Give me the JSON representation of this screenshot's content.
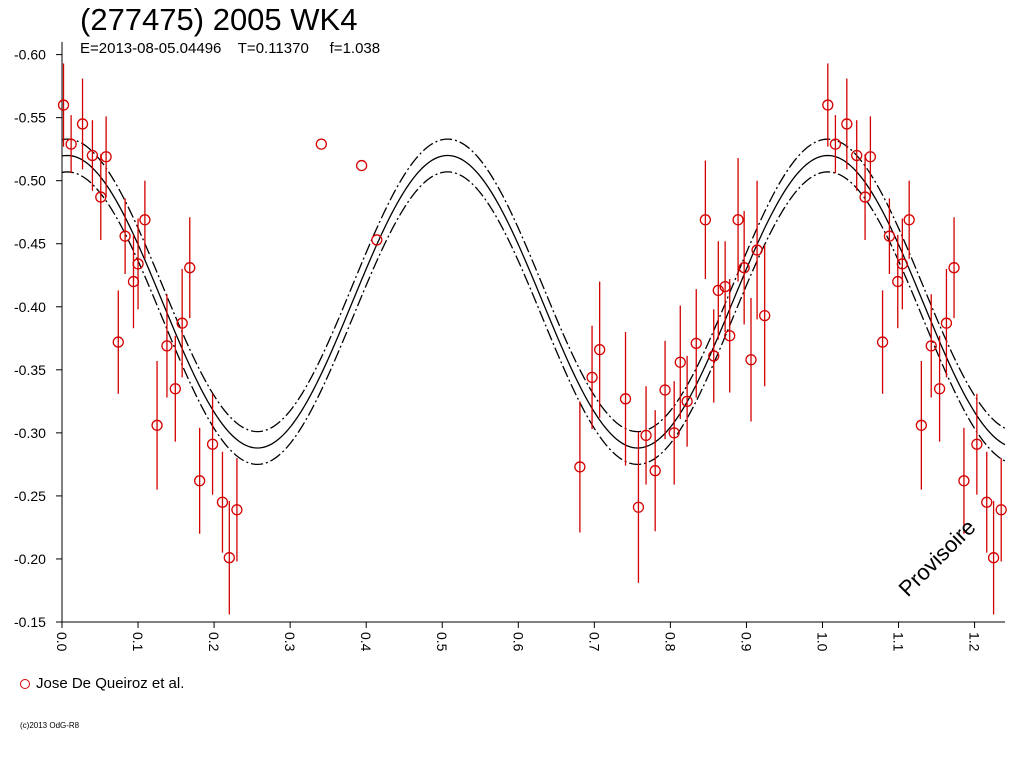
{
  "header": {
    "title": "(277475) 2005 WK4",
    "subtitle": "E=2013-08-05.04496    T=0.11370     f=1.038"
  },
  "legend": {
    "label": "Jose De Queiroz et al."
  },
  "copyright": "(c)2013 OdG-R8",
  "watermark": "Provisoire",
  "colors": {
    "points": "#d40000",
    "curves": "#000000",
    "axes": "#000000"
  },
  "chart_data": {
    "type": "scatter",
    "title": "(277475) 2005 WK4",
    "xlim": [
      0.0,
      1.24
    ],
    "ylim": [
      -0.61,
      -0.15
    ],
    "y_inverted": true,
    "x_ticks": [
      "0.0",
      "0.1",
      "0.2",
      "0.3",
      "0.4",
      "0.5",
      "0.6",
      "0.7",
      "0.8",
      "0.9",
      "1.0",
      "1.1",
      "1.2"
    ],
    "y_ticks": [
      "-0.60",
      "-0.55",
      "-0.50",
      "-0.45",
      "-0.40",
      "-0.35",
      "-0.30",
      "-0.25",
      "-0.20",
      "-0.15"
    ],
    "fit": {
      "period_phase": 0.5,
      "mean": -0.404,
      "amplitude": 0.116,
      "peak_phase": 0.007,
      "band": 0.013
    },
    "series": [
      {
        "name": "Jose De Queiroz et al.",
        "points": [
          [
            0.002,
            -0.56,
            0.033
          ],
          [
            0.012,
            -0.529,
            0.023
          ],
          [
            0.027,
            -0.545,
            0.036
          ],
          [
            0.04,
            -0.52,
            0.028
          ],
          [
            0.051,
            -0.487,
            0.034
          ],
          [
            0.058,
            -0.519,
            0.032
          ],
          [
            0.074,
            -0.372,
            0.041
          ],
          [
            0.083,
            -0.456,
            0.03
          ],
          [
            0.094,
            -0.42,
            0.037
          ],
          [
            0.1,
            -0.434,
            0.036
          ],
          [
            0.109,
            -0.469,
            0.031
          ],
          [
            0.125,
            -0.306,
            0.051
          ],
          [
            0.138,
            -0.369,
            0.041
          ],
          [
            0.149,
            -0.335,
            0.042
          ],
          [
            0.158,
            -0.387,
            0.043
          ],
          [
            0.168,
            -0.431,
            0.04
          ],
          [
            0.181,
            -0.262,
            0.042
          ],
          [
            0.198,
            -0.291,
            0.04
          ],
          [
            0.211,
            -0.245,
            0.04
          ],
          [
            0.22,
            -0.201,
            0.045
          ],
          [
            0.23,
            -0.239,
            0.041
          ],
          [
            0.341,
            -0.529,
            0.0
          ],
          [
            0.394,
            -0.512,
            0.0
          ],
          [
            0.414,
            -0.453,
            0.0
          ],
          [
            0.681,
            -0.273,
            0.052
          ],
          [
            0.697,
            -0.344,
            0.041
          ],
          [
            0.707,
            -0.366,
            0.054
          ],
          [
            0.741,
            -0.327,
            0.053
          ],
          [
            0.758,
            -0.241,
            0.06
          ],
          [
            0.768,
            -0.298,
            0.039
          ],
          [
            0.78,
            -0.27,
            0.048
          ],
          [
            0.793,
            -0.334,
            0.039
          ],
          [
            0.805,
            -0.3,
            0.041
          ],
          [
            0.813,
            -0.356,
            0.045
          ],
          [
            0.822,
            -0.325,
            0.036
          ],
          [
            0.834,
            -0.371,
            0.043
          ],
          [
            0.846,
            -0.469,
            0.047
          ],
          [
            0.857,
            -0.361,
            0.037
          ],
          [
            0.863,
            -0.413,
            0.039
          ],
          [
            0.872,
            -0.416,
            0.036
          ],
          [
            0.878,
            -0.377,
            0.045
          ],
          [
            0.889,
            -0.469,
            0.049
          ],
          [
            0.897,
            -0.431,
            0.045
          ],
          [
            0.906,
            -0.358,
            0.049
          ],
          [
            0.914,
            -0.445,
            0.055
          ],
          [
            0.924,
            -0.393,
            0.056
          ],
          [
            1.007,
            -0.56,
            0.033
          ],
          [
            1.017,
            -0.529,
            0.023
          ],
          [
            1.032,
            -0.545,
            0.036
          ],
          [
            1.045,
            -0.52,
            0.028
          ],
          [
            1.056,
            -0.487,
            0.034
          ],
          [
            1.063,
            -0.519,
            0.032
          ],
          [
            1.079,
            -0.372,
            0.041
          ],
          [
            1.088,
            -0.456,
            0.03
          ],
          [
            1.099,
            -0.42,
            0.037
          ],
          [
            1.105,
            -0.434,
            0.036
          ],
          [
            1.114,
            -0.469,
            0.031
          ],
          [
            1.13,
            -0.306,
            0.051
          ],
          [
            1.143,
            -0.369,
            0.041
          ],
          [
            1.154,
            -0.335,
            0.042
          ],
          [
            1.163,
            -0.387,
            0.043
          ],
          [
            1.173,
            -0.431,
            0.04
          ],
          [
            1.186,
            -0.262,
            0.042
          ],
          [
            1.203,
            -0.291,
            0.04
          ],
          [
            1.216,
            -0.245,
            0.04
          ],
          [
            1.225,
            -0.201,
            0.045
          ],
          [
            1.235,
            -0.239,
            0.041
          ]
        ]
      }
    ]
  }
}
